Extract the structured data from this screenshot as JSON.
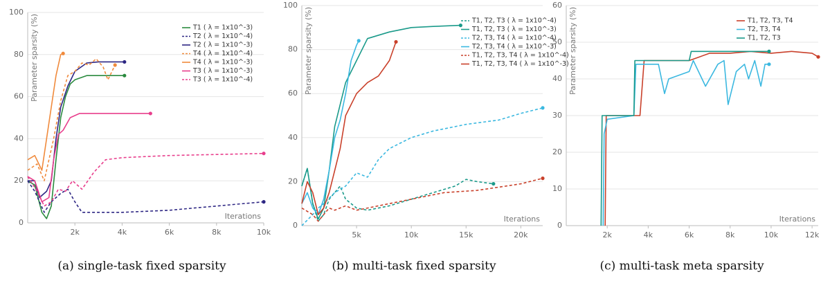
{
  "chart_data": [
    {
      "type": "line",
      "caption": "(a) single-task fixed sparsity",
      "y_label": "Parameter sparsity (%)",
      "x_label": "Iterations",
      "xlim": [
        0,
        10000
      ],
      "ylim": [
        0,
        100
      ],
      "xticks": [
        {
          "value": 2000,
          "label": "2k"
        },
        {
          "value": 4000,
          "label": "4k"
        },
        {
          "value": 6000,
          "label": "6k"
        },
        {
          "value": 8000,
          "label": "8k"
        },
        {
          "value": 10000,
          "label": "10k"
        }
      ],
      "yticks": [
        0,
        20,
        40,
        60,
        80,
        100
      ],
      "grid": true,
      "legend": "upper right",
      "end_marker": true,
      "series": [
        {
          "name": "T1 ( λ = 1x10^-3)",
          "color": "#2a8a3e",
          "dashed": false,
          "x": [
            0,
            300,
            600,
            800,
            1000,
            1200,
            1400,
            1600,
            1800,
            2000,
            2500,
            3000,
            4100
          ],
          "values": [
            20,
            18,
            5,
            2,
            8,
            30,
            50,
            60,
            66,
            68,
            70,
            70,
            70
          ]
        },
        {
          "name": "T2 ( λ = 1x10^-4)",
          "color": "#2d2683",
          "dashed": true,
          "x": [
            0,
            300,
            700,
            1000,
            1400,
            1700,
            2000,
            2300,
            3000,
            4000,
            5000,
            6000,
            7000,
            8000,
            9000,
            10000
          ],
          "values": [
            20,
            15,
            5,
            10,
            14,
            16,
            10,
            5,
            5,
            5,
            5.5,
            6,
            7,
            8,
            9,
            10
          ]
        },
        {
          "name": "T2 ( λ = 1x10^-3)",
          "color": "#2d2683",
          "dashed": false,
          "x": [
            0,
            300,
            500,
            800,
            1000,
            1200,
            1400,
            1700,
            2000,
            2500,
            3000,
            4100
          ],
          "values": [
            20,
            20,
            12,
            15,
            20,
            40,
            55,
            65,
            72,
            76,
            76.5,
            76.5
          ]
        },
        {
          "name": "T4 ( λ = 1x10^-4)",
          "color": "#f08a3c",
          "dashed": true,
          "x": [
            0,
            400,
            700,
            900,
            1100,
            1400,
            1700,
            2000,
            2300,
            2600,
            2900,
            3200,
            3400,
            3700
          ],
          "values": [
            25,
            28,
            20,
            30,
            40,
            58,
            70,
            72,
            76,
            75,
            78,
            74,
            68,
            75
          ]
        },
        {
          "name": "T4 ( λ = 1x10^-3)",
          "color": "#f08a3c",
          "dashed": false,
          "x": [
            0,
            300,
            600,
            800,
            1000,
            1200,
            1400,
            1500
          ],
          "values": [
            30,
            32,
            25,
            40,
            55,
            70,
            80,
            80.5
          ]
        },
        {
          "name": "T3 ( λ = 1x10^-3)",
          "color": "#e83e8c",
          "dashed": false,
          "x": [
            0,
            300,
            600,
            900,
            1100,
            1300,
            1500,
            1800,
            2200,
            3000,
            5200
          ],
          "values": [
            22,
            20,
            10,
            12,
            30,
            42,
            44,
            50,
            52,
            52,
            52
          ]
        },
        {
          "name": "T3 ( λ = 1x10^-4)",
          "color": "#e83e8c",
          "dashed": true,
          "x": [
            0,
            400,
            700,
            1000,
            1300,
            1600,
            1900,
            2300,
            2800,
            3300,
            4000,
            5000,
            6000,
            8000,
            10000
          ],
          "values": [
            22,
            15,
            8,
            10,
            16,
            15,
            20,
            16,
            24,
            30,
            31,
            31.5,
            32,
            32.5,
            33
          ]
        }
      ]
    },
    {
      "type": "line",
      "caption": "(b) multi-task fixed sparsity",
      "y_label": "Parameter sparsity (%)",
      "x_label": "Iterations",
      "xlim": [
        0,
        22000
      ],
      "ylim": [
        0,
        100
      ],
      "xticks": [
        {
          "value": 5000,
          "label": "5k"
        },
        {
          "value": 10000,
          "label": "10k"
        },
        {
          "value": 15000,
          "label": "15k"
        },
        {
          "value": 20000,
          "label": "20k"
        }
      ],
      "yticks": [
        0,
        20,
        40,
        60,
        80,
        100
      ],
      "grid": true,
      "legend": "upper right",
      "end_marker": true,
      "series": [
        {
          "name": "T1, T2, T3 ( λ = 1x10^-4)",
          "color": "#1a9a8a",
          "dashed": true,
          "x": [
            0,
            500,
            1000,
            1500,
            2000,
            2500,
            3000,
            3500,
            4000,
            5000,
            6000,
            8000,
            10000,
            12000,
            14000,
            15000,
            16000,
            17500
          ],
          "values": [
            18,
            26,
            10,
            2,
            5,
            12,
            15,
            18,
            12,
            8,
            7,
            9,
            12,
            15,
            18,
            21,
            20,
            19
          ]
        },
        {
          "name": "T1, T2, T3 ( λ = 1x10^-3)",
          "color": "#1a9a8a",
          "dashed": false,
          "x": [
            0,
            500,
            1000,
            1500,
            2000,
            2500,
            3000,
            3500,
            4000,
            5000,
            6000,
            8000,
            10000,
            12000,
            14500
          ],
          "values": [
            18,
            26,
            10,
            3,
            8,
            25,
            45,
            55,
            65,
            75,
            85,
            88,
            90,
            90.5,
            91
          ]
        },
        {
          "name": "T2, T3, T4 ( λ = 1x10^-4)",
          "color": "#3bb8e0",
          "dashed": true,
          "x": [
            0,
            1000,
            1500,
            2000,
            3000,
            4000,
            5000,
            6000,
            7000,
            8000,
            10000,
            12000,
            15000,
            18000,
            20000,
            22000
          ],
          "values": [
            0,
            5,
            8,
            10,
            15,
            18,
            24,
            22,
            30,
            35,
            40,
            43,
            46,
            48,
            51,
            53.5
          ]
        },
        {
          "name": "T2, T3, T4 ( λ = 1x10^-3)",
          "color": "#3bb8e0",
          "dashed": false,
          "x": [
            0,
            500,
            1000,
            1500,
            2000,
            2500,
            3000,
            3500,
            4000,
            4500,
            5000,
            5200
          ],
          "values": [
            10,
            15,
            8,
            5,
            12,
            25,
            40,
            48,
            60,
            75,
            82,
            84
          ]
        },
        {
          "name": "T1, T2, T3, T4 ( λ = 1x10^-4)",
          "color": "#c9402a",
          "dashed": true,
          "x": [
            0,
            1000,
            1500,
            2000,
            2500,
            3000,
            4000,
            5000,
            6000,
            8000,
            10000,
            13000,
            16000,
            20000,
            22000
          ],
          "values": [
            8,
            5,
            2,
            5,
            8,
            7,
            9,
            7,
            8,
            10,
            12,
            15,
            16,
            19,
            21.5
          ]
        },
        {
          "name": "T1, T2, T3, T4 ( λ = 1x10^-3)",
          "color": "#c9402a",
          "dashed": false,
          "x": [
            0,
            500,
            1000,
            1500,
            2000,
            2500,
            3000,
            3500,
            4000,
            5000,
            6000,
            7000,
            8000,
            8600
          ],
          "values": [
            10,
            20,
            15,
            5,
            8,
            15,
            25,
            35,
            50,
            60,
            65,
            68,
            75,
            83.5
          ]
        }
      ]
    },
    {
      "type": "line",
      "caption": "(c) multi-task meta sparsity",
      "y_label": "Parameter sparsity (%)",
      "x_label": "Iterations",
      "xlim": [
        0,
        12300
      ],
      "ylim": [
        0,
        60
      ],
      "xticks": [
        {
          "value": 2000,
          "label": "2k"
        },
        {
          "value": 4000,
          "label": "4k"
        },
        {
          "value": 6000,
          "label": "6k"
        },
        {
          "value": 8000,
          "label": "8k"
        },
        {
          "value": 10000,
          "label": "10k"
        },
        {
          "value": 12000,
          "label": "12k"
        }
      ],
      "yticks": [
        0,
        10,
        20,
        30,
        40,
        50,
        60
      ],
      "grid": true,
      "legend": "upper right",
      "end_marker": true,
      "series": [
        {
          "name": "T1, T2, T3, T4",
          "color": "#c9402a",
          "dashed": false,
          "x": [
            1900,
            1950,
            3600,
            3800,
            6000,
            6500,
            7000,
            8000,
            9000,
            10000,
            11000,
            12000,
            12300
          ],
          "values": [
            0,
            30,
            30,
            45,
            45,
            46,
            47,
            47,
            47.5,
            47,
            47.5,
            47,
            46
          ]
        },
        {
          "name": "T2, T3, T4",
          "color": "#3bb8e0",
          "dashed": false,
          "x": [
            1800,
            1850,
            2000,
            3300,
            3400,
            4500,
            4800,
            5000,
            6000,
            6200,
            6800,
            7400,
            7700,
            7900,
            8300,
            8700,
            8900,
            9200,
            9500,
            9700,
            9900
          ],
          "values": [
            0,
            25,
            29,
            30,
            44,
            44,
            36,
            40,
            42,
            45,
            38,
            44,
            45,
            33,
            42,
            44,
            40,
            45,
            38,
            44,
            44
          ]
        },
        {
          "name": "T1, T2, T3",
          "color": "#1a9a8a",
          "dashed": false,
          "x": [
            1700,
            1750,
            3300,
            3350,
            6000,
            6100,
            8000,
            9900
          ],
          "values": [
            0,
            30,
            30,
            45,
            45,
            47.5,
            47.5,
            47.5
          ]
        }
      ]
    }
  ]
}
